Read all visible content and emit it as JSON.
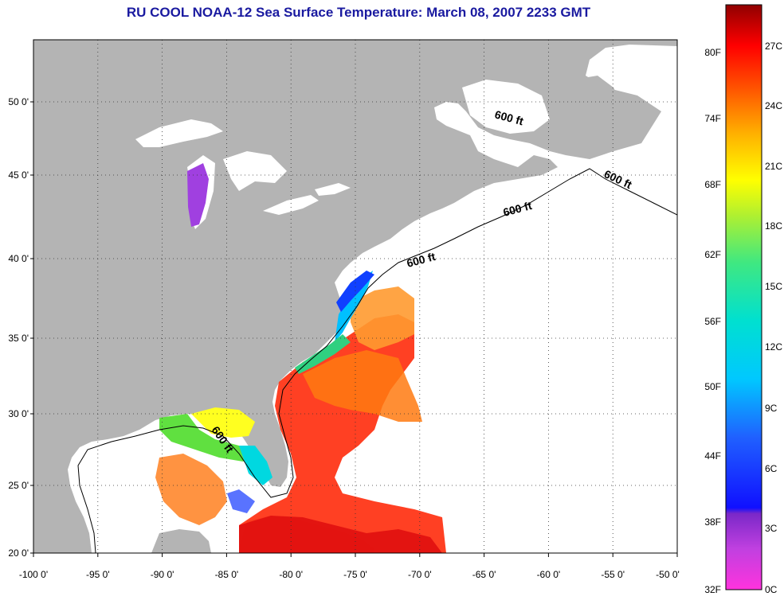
{
  "title": "RU COOL  NOAA-12  Sea Surface Temperature:  March 08, 2007 2233 GMT",
  "longitude_ticks": [
    "-100 0'",
    "-95 0'",
    "-90 0'",
    "-85 0'",
    "-80 0'",
    "-75 0'",
    "-70 0'",
    "-65 0'",
    "-60 0'",
    "-55 0'",
    "-50 0'"
  ],
  "latitude_ticks": [
    "50 0'",
    "45 0'",
    "40 0'",
    "35 0'",
    "30 0'",
    "25 0'",
    "20 0'"
  ],
  "contour_labels": [
    "600 ft",
    "600 ft",
    "600 ft",
    "600 ft",
    "600 ft"
  ],
  "colorbar": {
    "fahrenheit": [
      "80F",
      "74F",
      "68F",
      "62F",
      "56F",
      "50F",
      "44F",
      "38F",
      "32F"
    ],
    "celsius": [
      "27C",
      "24C",
      "21C",
      "18C",
      "15C",
      "12C",
      "9C",
      "6C",
      "3C",
      "0C"
    ]
  },
  "colors": {
    "land": "#b4b4b4",
    "ocean_nodata": "#ffffff",
    "title": "#1a1aa0"
  }
}
